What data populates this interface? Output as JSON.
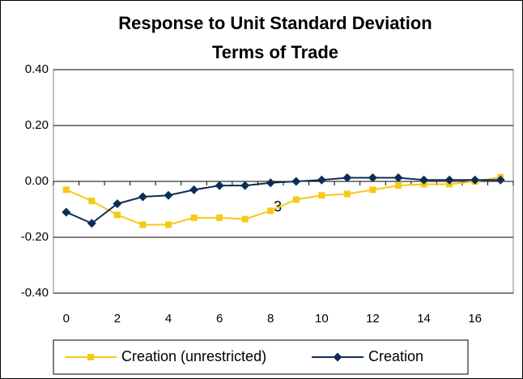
{
  "chart_data": {
    "type": "line",
    "title": [
      "Response to Unit Standard Deviation",
      "Terms of Trade"
    ],
    "categories": [
      0,
      null,
      2,
      null,
      4,
      null,
      6,
      null,
      8,
      null,
      10,
      null,
      12,
      null,
      14,
      null,
      16,
      null
    ],
    "series": [
      {
        "name": "Creation (unrestricted)",
        "color": "#f7c815",
        "marker": "square",
        "values": [
          -0.03,
          -0.07,
          -0.12,
          -0.155,
          -0.155,
          -0.13,
          -0.13,
          -0.135,
          -0.105,
          -0.065,
          -0.05,
          -0.045,
          -0.03,
          -0.015,
          -0.01,
          -0.01,
          0.0,
          0.015
        ]
      },
      {
        "name": "Creation",
        "color": "#0d2d57",
        "marker": "diamond",
        "values": [
          -0.11,
          -0.15,
          -0.08,
          -0.055,
          -0.05,
          -0.03,
          -0.015,
          -0.015,
          -0.005,
          0.0,
          0.005,
          0.013,
          0.013,
          0.013,
          0.005,
          0.005,
          0.005,
          0.005
        ]
      }
    ],
    "ylim": [
      -0.4,
      0.4
    ],
    "yticks": [
      {
        "value": 0.4,
        "label": "0.40"
      },
      {
        "value": 0.2,
        "label": "0.20"
      },
      {
        "value": 0,
        "label": "0.00"
      },
      {
        "value": -0.2,
        "label": "-0.20"
      },
      {
        "value": -0.4,
        "label": "-0.40"
      }
    ],
    "grid": true,
    "legend": "bottom",
    "annotations": [
      "3"
    ]
  }
}
